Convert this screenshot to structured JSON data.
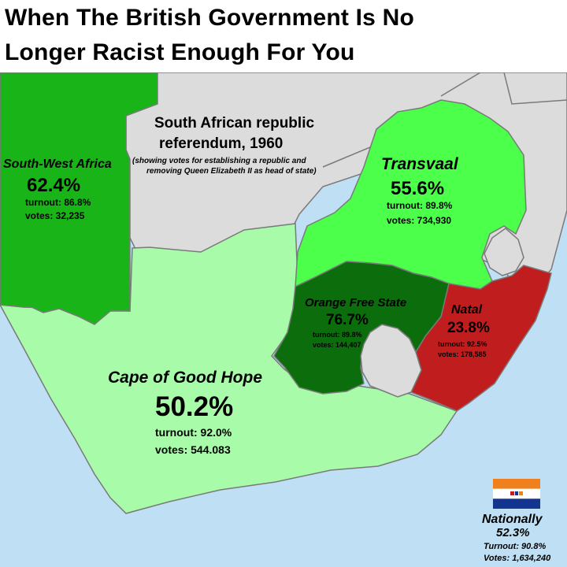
{
  "header": {
    "line1": "When The British Government Is No",
    "line2": "Longer Racist Enough For You"
  },
  "map_title": {
    "line1": "South African republic",
    "line2": "referendum, 1960",
    "subtitle1": "(showing votes for establishing a republic and",
    "subtitle2": "removing Queen Elizabeth II as head of state)"
  },
  "regions": {
    "south_west_africa": {
      "name": "South-West Africa",
      "pct": "62.4%",
      "turnout": "turnout: 86.8%",
      "votes": "votes: 32,235",
      "color": "#18b418"
    },
    "transvaal": {
      "name": "Transvaal",
      "pct": "55.6%",
      "turnout": "turnout: 89.8%",
      "votes": "votes: 734,930",
      "color": "#4bff4b"
    },
    "orange_free_state": {
      "name": "Orange Free State",
      "pct": "76.7%",
      "turnout": "turnout: 89.8%",
      "votes": "votes: 144,407",
      "color": "#0b6d0b"
    },
    "natal": {
      "name": "Natal",
      "pct": "23.8%",
      "turnout": "turnout: 92.5%",
      "votes": "votes: 178,585",
      "color": "#c01e1e"
    },
    "cape": {
      "name": "Cape of Good Hope",
      "pct": "50.2%",
      "turnout": "turnout: 92.0%",
      "votes": "votes: 544.083",
      "color": "#a8fba8"
    }
  },
  "national": {
    "label": "Nationally",
    "pct": "52.3%",
    "turnout": "Turnout: 90.8%",
    "votes": "Votes: 1,634,240"
  },
  "colors": {
    "sea": "#bfe0f4",
    "neighbor": "#dcdcdc",
    "border": "#7a7a7a",
    "flag_orange": "#f0801e",
    "flag_white": "#ffffff",
    "flag_blue": "#13358f"
  }
}
